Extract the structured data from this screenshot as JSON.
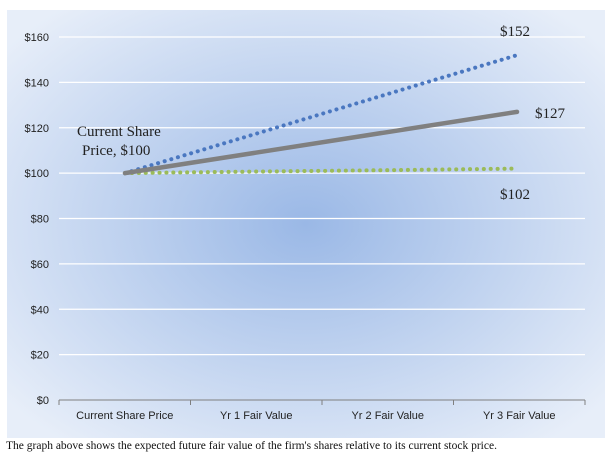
{
  "chart_data": {
    "type": "line",
    "categories": [
      "Current Share Price",
      "Yr 1 Fair Value",
      "Yr 2 Fair Value",
      "Yr 3 Fair Value"
    ],
    "series": [
      {
        "values": [
          100,
          117.3,
          134.7,
          152
        ],
        "color": "#4a77c0",
        "style": "dotted"
      },
      {
        "values": [
          100,
          109,
          118,
          127
        ],
        "color": "#808080",
        "style": "solid"
      },
      {
        "values": [
          100,
          100.7,
          101.3,
          102
        ],
        "color": "#9bbb59",
        "style": "dotted"
      }
    ],
    "ylim": [
      0,
      160
    ],
    "y_ticks": [
      "$0",
      "$20",
      "$40",
      "$60",
      "$80",
      "$100",
      "$120",
      "$140",
      "$160"
    ],
    "grid": true,
    "annotations": {
      "start_line1": "Current Share",
      "start_line2": "Price, $100",
      "end_blue": "$152",
      "end_gray": "$127",
      "end_green": "$102"
    },
    "background": "#a9c2e8"
  },
  "caption": "The graph above shows the expected future fair value of the firm's shares relative to its current stock price."
}
